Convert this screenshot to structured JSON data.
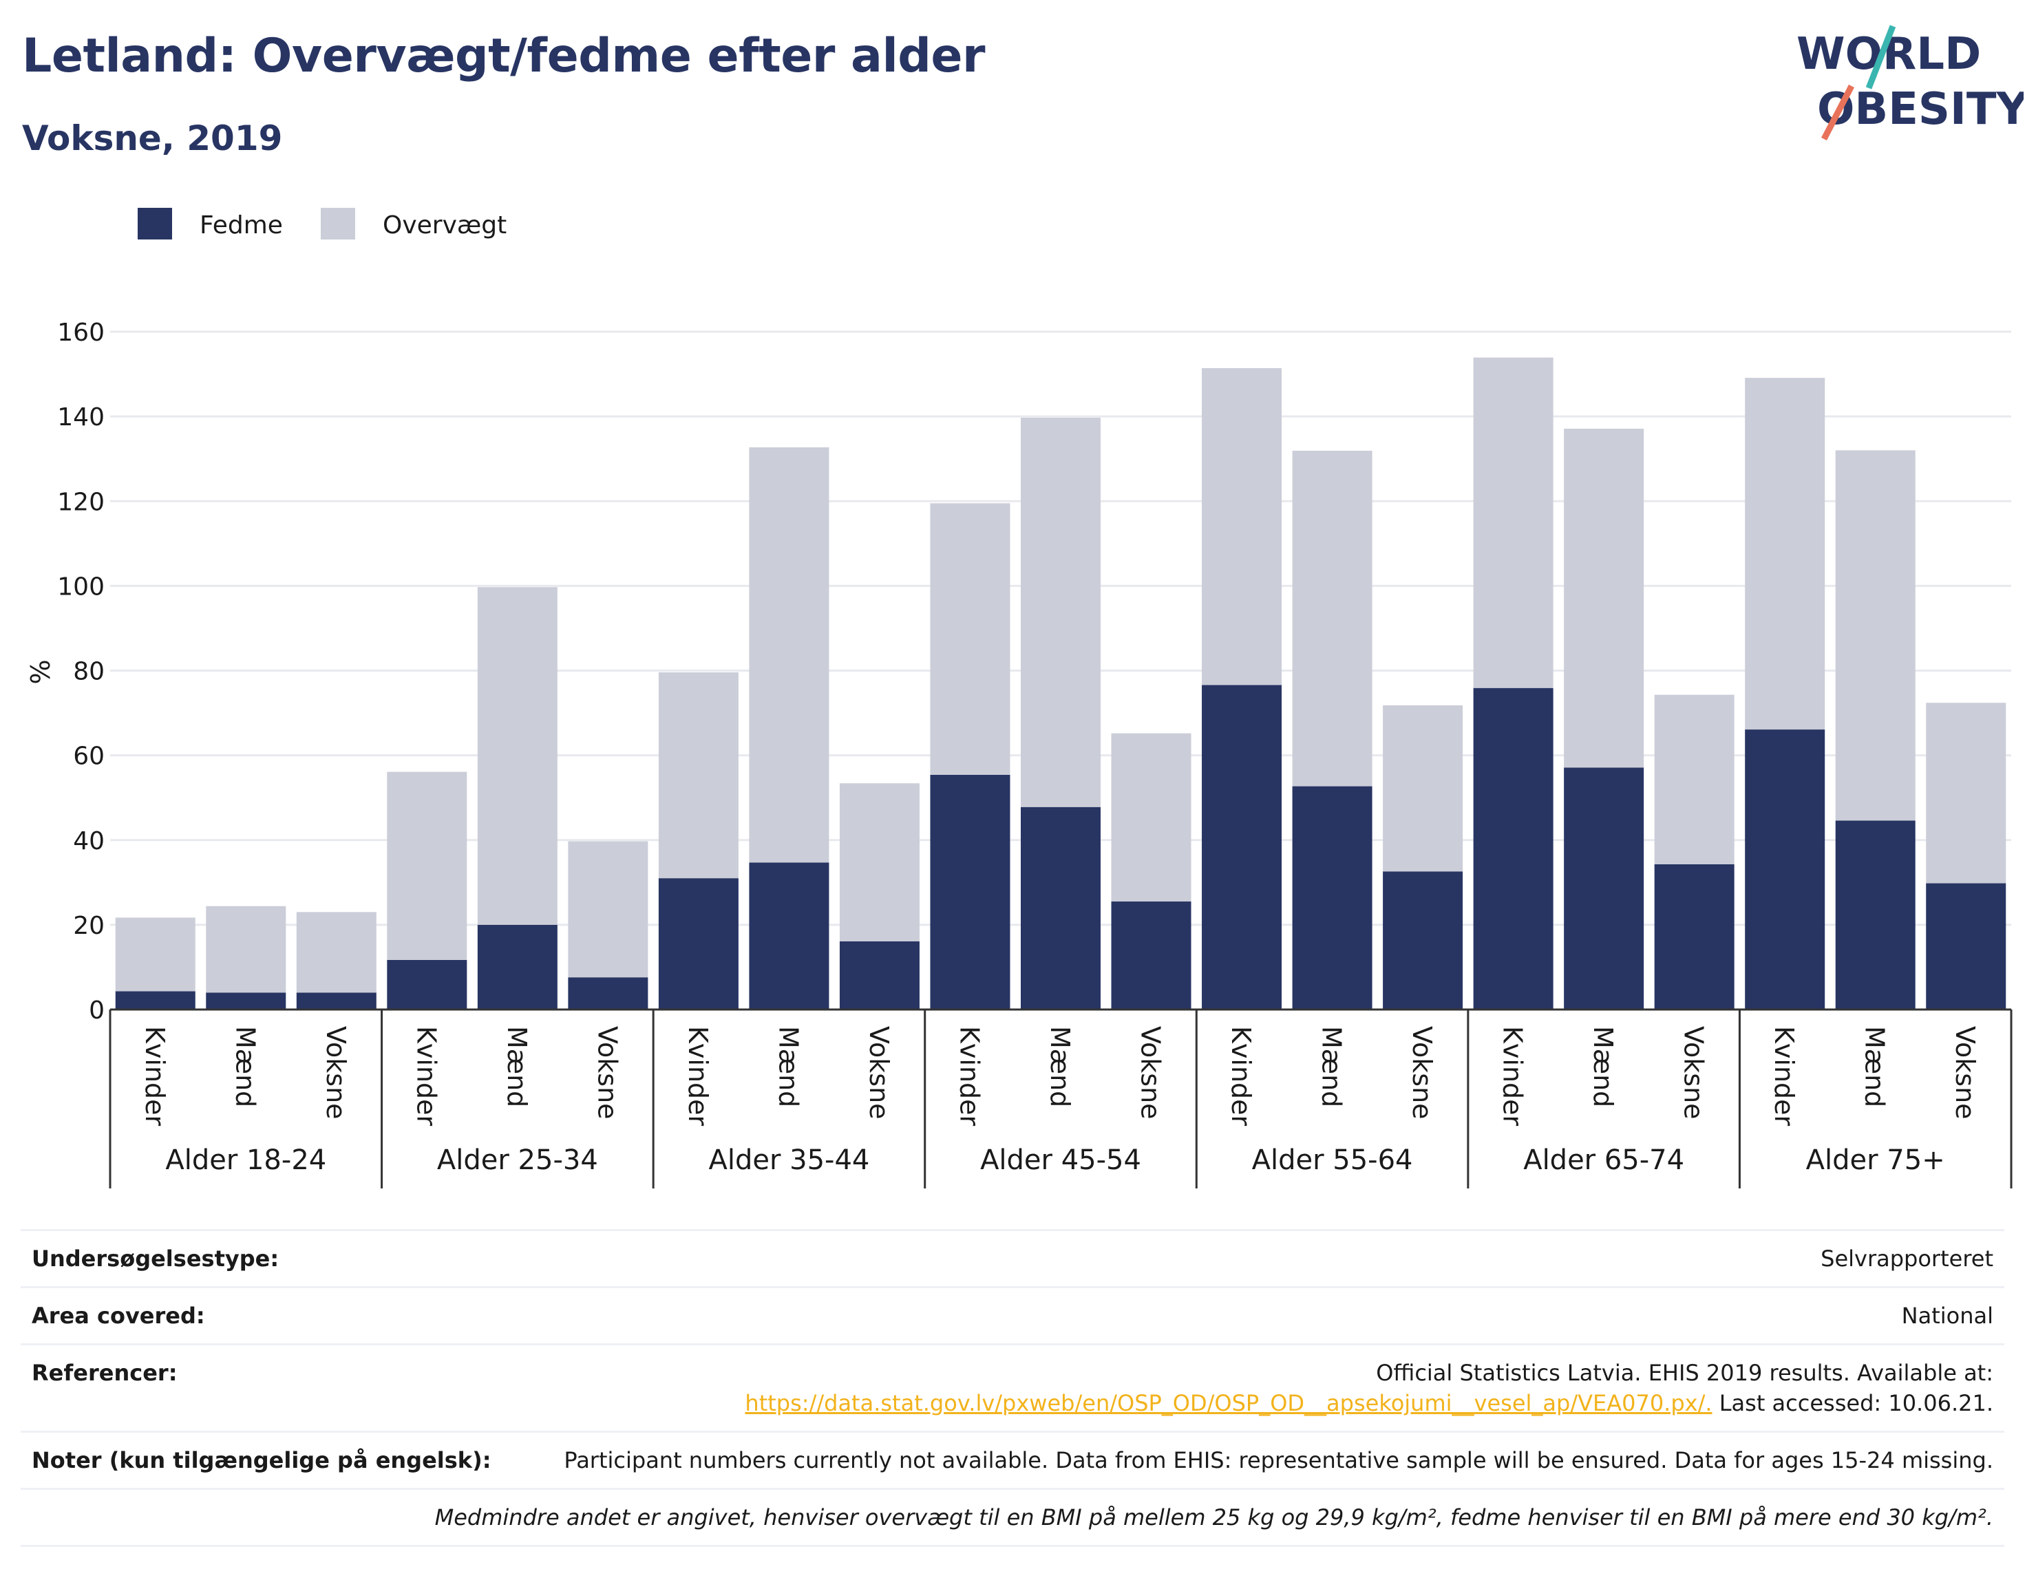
{
  "header": {
    "title": "Letland: Overvægt/fedme efter alder",
    "subtitle": "Voksne, 2019"
  },
  "logo": {
    "line1": "WORLD",
    "line2": "OBESITY",
    "colors": {
      "text": "#283563",
      "slash_top": "#3ab5b0",
      "slash_bottom": "#e8735a"
    }
  },
  "colors": {
    "fedme": "#283563",
    "overvaegt": "#cbcdd8",
    "grid": "#e8e9ee",
    "axis": "#333333"
  },
  "chart_data": {
    "type": "bar",
    "stacked": true,
    "ylabel": "%",
    "ylim": [
      0,
      160
    ],
    "yticks": [
      0,
      20,
      40,
      60,
      80,
      100,
      120,
      140,
      160
    ],
    "grid": true,
    "legend_position": "top-left",
    "groups": [
      "Alder 18-24",
      "Alder 25-34",
      "Alder 35-44",
      "Alder 45-54",
      "Alder 55-64",
      "Alder 65-74",
      "Alder 75+"
    ],
    "categories": [
      "Kvinder",
      "Mænd",
      "Voksne"
    ],
    "series": [
      {
        "name": "Fedme",
        "values": [
          [
            4.3,
            4.0,
            4.0
          ],
          [
            11.7,
            20.0,
            7.6
          ],
          [
            31.0,
            34.7,
            16.1
          ],
          [
            55.4,
            47.8,
            25.5
          ],
          [
            76.6,
            52.7,
            32.6
          ],
          [
            75.9,
            57.1,
            34.3
          ],
          [
            66.1,
            44.6,
            29.8
          ]
        ]
      },
      {
        "name": "Overvægt",
        "values": [
          [
            17.4,
            20.4,
            19.0
          ],
          [
            44.4,
            79.7,
            32.1
          ],
          [
            48.6,
            98.0,
            37.3
          ],
          [
            64.1,
            91.9,
            39.7
          ],
          [
            74.8,
            79.2,
            39.2
          ],
          [
            78.0,
            80.0,
            40.0
          ],
          [
            83.0,
            87.4,
            42.6
          ]
        ]
      }
    ]
  },
  "info": {
    "survey_label": "Undersøgelsestype:",
    "survey_value": "Selvrapporteret",
    "area_label": "Area covered:",
    "area_value": "National",
    "ref_label": "Referencer:",
    "ref_line1": "Official Statistics Latvia. EHIS 2019 results. Available at:",
    "ref_link": "https://data.stat.gov.lv/pxweb/en/OSP_OD/OSP_OD__apsekojumi__vesel_ap/VEA070.px/.",
    "ref_tail": " Last accessed: 10.06.21.",
    "notes_label": "Noter (kun tilgængelige på engelsk):",
    "notes_value": "Participant numbers currently not available. Data from EHIS: representative sample will be ensured. Data for ages 15-24 missing.",
    "footnote": "Medmindre andet er angivet, henviser overvægt til en BMI på mellem 25 kg og 29,9 kg/m², fedme henviser til en BMI på mere end 30 kg/m²."
  }
}
